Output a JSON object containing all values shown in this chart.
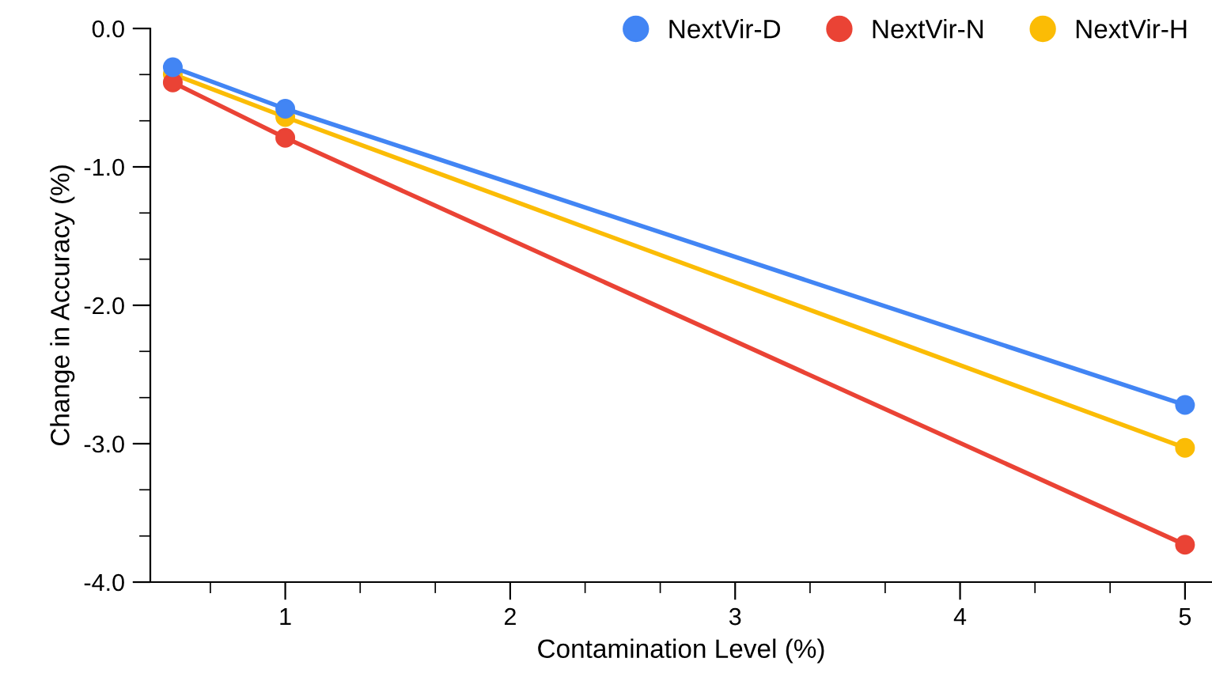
{
  "chart_data": {
    "type": "line",
    "xlabel": "Contamination Level (%)",
    "ylabel": "Change in Accuracy (%)",
    "x": [
      0.5,
      1,
      5
    ],
    "series": [
      {
        "name": "NextVir-D",
        "color": "#4285f4",
        "values": [
          -0.28,
          -0.58,
          -2.72
        ]
      },
      {
        "name": "NextVir-N",
        "color": "#ea4335",
        "values": [
          -0.39,
          -0.79,
          -3.73
        ]
      },
      {
        "name": "NextVir-H",
        "color": "#fbbc05",
        "values": [
          -0.33,
          -0.64,
          -3.03
        ]
      }
    ],
    "xlim": [
      0.4,
      5.12
    ],
    "ylim": [
      -4,
      0
    ],
    "xticks": [
      {
        "value": 0.667,
        "label": null
      },
      1,
      {
        "value": 1.333,
        "label": null
      },
      {
        "value": 1.667,
        "label": null
      },
      2,
      {
        "value": 2.333,
        "label": null
      },
      {
        "value": 2.667,
        "label": null
      },
      3,
      {
        "value": 3.333,
        "label": null
      },
      {
        "value": 3.667,
        "label": null
      },
      4,
      {
        "value": 4.333,
        "label": null
      },
      {
        "value": 4.667,
        "label": null
      },
      5
    ],
    "yticks": [
      {
        "value": 0,
        "label": "0.0"
      },
      {
        "value": -0.333,
        "label": null
      },
      {
        "value": -0.667,
        "label": null
      },
      {
        "value": -1,
        "label": "-1.0"
      },
      {
        "value": -1.333,
        "label": null
      },
      {
        "value": -1.667,
        "label": null
      },
      {
        "value": -2,
        "label": "-2.0"
      },
      {
        "value": -2.333,
        "label": null
      },
      {
        "value": -2.667,
        "label": null
      },
      {
        "value": -3,
        "label": "-3.0"
      },
      {
        "value": -3.333,
        "label": null
      },
      {
        "value": -3.667,
        "label": null
      },
      {
        "value": -4,
        "label": "-4.0"
      }
    ],
    "grid": false,
    "legend": "top right",
    "marker": "circle",
    "line_style": "solid"
  }
}
